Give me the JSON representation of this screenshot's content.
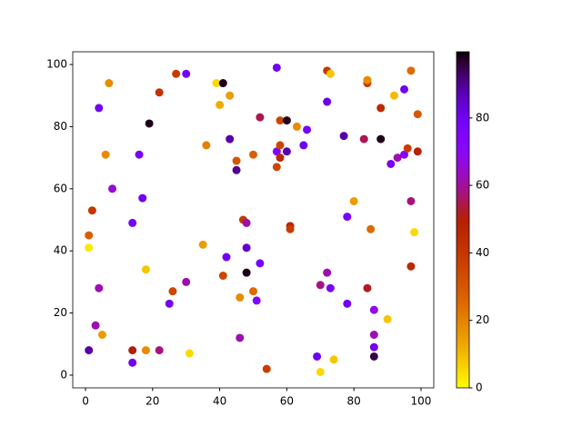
{
  "chart_data": {
    "type": "scatter",
    "x": [
      1,
      1,
      1,
      2,
      3,
      4,
      4,
      5,
      6,
      7,
      8,
      14,
      14,
      14,
      16,
      17,
      18,
      18,
      19,
      22,
      22,
      25,
      26,
      27,
      30,
      30,
      31,
      35,
      36,
      39,
      40,
      41,
      41,
      42,
      43,
      43,
      45,
      45,
      46,
      46,
      47,
      48,
      48,
      48,
      50,
      50,
      51,
      52,
      52,
      54,
      57,
      57,
      57,
      58,
      58,
      58,
      60,
      60,
      61,
      61,
      63,
      65,
      66,
      69,
      70,
      70,
      72,
      73,
      72,
      72,
      73,
      74,
      77,
      78,
      78,
      80,
      83,
      84,
      84,
      84,
      85,
      86,
      86,
      86,
      86,
      88,
      88,
      90,
      92,
      91,
      93,
      95,
      95,
      96,
      97,
      97,
      97,
      98,
      99,
      99
    ],
    "y": [
      8,
      41,
      45,
      53,
      16,
      28,
      86,
      13,
      71,
      94,
      60,
      8,
      49,
      4,
      71,
      57,
      34,
      8,
      81,
      91,
      8,
      23,
      27,
      97,
      97,
      30,
      7,
      42,
      74,
      94,
      87,
      94,
      32,
      38,
      90,
      76,
      69,
      66,
      12,
      25,
      50,
      49,
      33,
      41,
      71,
      27,
      24,
      83,
      36,
      2,
      99,
      72,
      67,
      70,
      74,
      82,
      82,
      72,
      48,
      47,
      80,
      74,
      79,
      6,
      1,
      29,
      98,
      97,
      88,
      33,
      28,
      5,
      77,
      51,
      23,
      56,
      76,
      94,
      95,
      28,
      47,
      21,
      13,
      9,
      6,
      86,
      76,
      18,
      90,
      68,
      70,
      71,
      92,
      73,
      98,
      56,
      35,
      46,
      72,
      84
    ],
    "c": [
      88,
      3,
      28,
      40,
      62,
      62,
      80,
      15,
      18,
      18,
      65,
      50,
      78,
      80,
      78,
      80,
      8,
      18,
      98,
      42,
      58,
      80,
      35,
      38,
      78,
      62,
      5,
      15,
      20,
      5,
      12,
      98,
      35,
      80,
      15,
      88,
      30,
      90,
      62,
      18,
      40,
      62,
      98,
      85,
      28,
      25,
      75,
      55,
      78,
      38,
      80,
      75,
      35,
      45,
      35,
      35,
      98,
      88,
      48,
      38,
      18,
      80,
      78,
      80,
      5,
      58,
      40,
      8,
      82,
      62,
      78,
      8,
      88,
      78,
      80,
      15,
      55,
      38,
      18,
      52,
      25,
      68,
      62,
      80,
      95,
      45,
      98,
      8,
      10,
      78,
      62,
      72,
      80,
      38,
      25,
      58,
      45,
      5,
      48,
      30
    ],
    "colormap": "gnuplot_r",
    "xlim": [
      -3.8,
      103.8
    ],
    "ylim": [
      -4.1,
      104.1
    ],
    "clim": [
      0,
      99.6
    ],
    "xticks": [
      0,
      20,
      40,
      60,
      80,
      100
    ],
    "yticks": [
      0,
      20,
      40,
      60,
      80,
      100
    ],
    "cticks": [
      0,
      20,
      40,
      60,
      80
    ]
  }
}
